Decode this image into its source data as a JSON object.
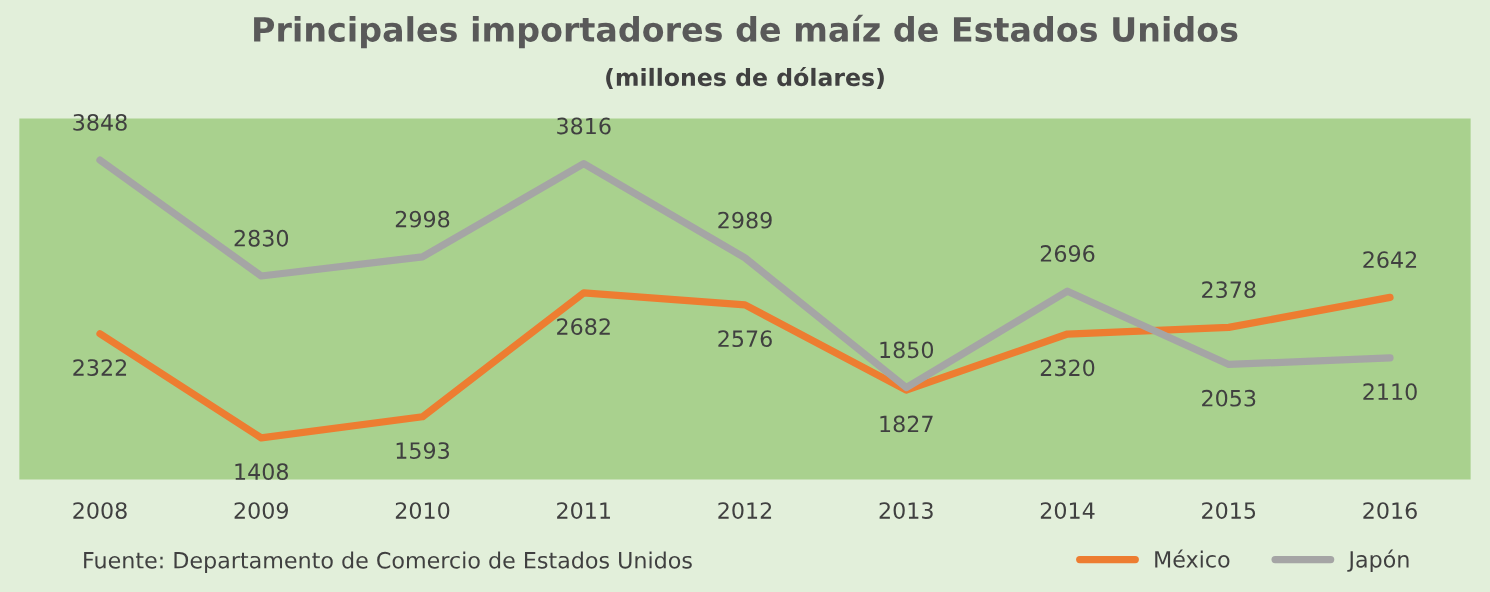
{
  "chart_data": {
    "type": "line",
    "title": "Principales importadores de maíz de Estados Unidos",
    "subtitle": "(millones de dólares)",
    "categories": [
      "2008",
      "2009",
      "2010",
      "2011",
      "2012",
      "2013",
      "2014",
      "2015",
      "2016"
    ],
    "series": [
      {
        "name": "México",
        "color": "#ed7d31",
        "values": [
          2322,
          1408,
          1593,
          2682,
          2576,
          1827,
          2320,
          2378,
          2642
        ]
      },
      {
        "name": "Japón",
        "color": "#a5a5a5",
        "values": [
          3848,
          2830,
          2998,
          3816,
          2989,
          1850,
          2696,
          2053,
          2110
        ]
      }
    ],
    "data_labels": true,
    "grid": false,
    "legend": "bottom right",
    "marker": "none",
    "line_style": "solid",
    "annotations": [
      "Fuente: Departamento de Comercio de Estados Unidos"
    ]
  }
}
